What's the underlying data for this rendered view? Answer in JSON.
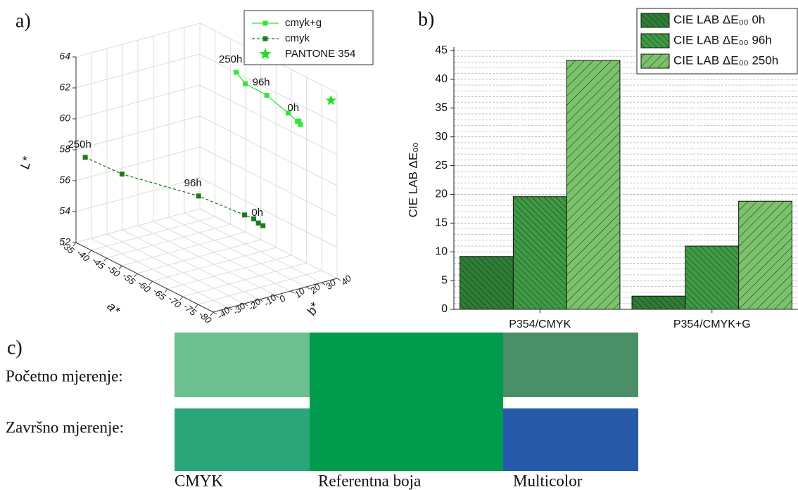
{
  "chart_data": [
    {
      "type": "line3d",
      "panel_label": "a)",
      "xlabel": "a*",
      "ylabel": "b*",
      "zlabel": "L*",
      "xlim": [
        -35,
        -80
      ],
      "xticks": [
        -35,
        -40,
        -45,
        -50,
        -55,
        -60,
        -65,
        -70,
        -75,
        -80
      ],
      "ylim": [
        -40,
        40
      ],
      "yticks": [
        -40,
        -30,
        -20,
        -10,
        0,
        10,
        20,
        30,
        40
      ],
      "zlim": [
        52,
        64
      ],
      "zticks": [
        52,
        54,
        56,
        58,
        60,
        62,
        64
      ],
      "grid": true,
      "series": [
        {
          "name": "cmyk+g",
          "color": "#33e633",
          "dash": false,
          "marker": "square",
          "x": [
            -52,
            -54,
            -60,
            -66,
            -68,
            -69,
            -68
          ],
          "y": [
            30,
            32,
            34,
            36,
            38,
            38,
            39
          ],
          "z": [
            62.8,
            62.2,
            62.0,
            61.4,
            61.0,
            60.9,
            61.0
          ],
          "point_labels": [
            "250h",
            null,
            "96h",
            null,
            null,
            null,
            "0h"
          ]
        },
        {
          "name": "cmyk",
          "color": "#1e7a1e",
          "dash": true,
          "marker": "square",
          "x": [
            -36,
            -44,
            -62,
            -72,
            -74,
            -75,
            -76
          ],
          "y": [
            -36,
            -28,
            -14,
            -4,
            -2,
            -1,
            0
          ],
          "z": [
            57.5,
            57.0,
            57.0,
            56.5,
            56.4,
            56.2,
            56.1
          ],
          "point_labels": [
            "250h",
            null,
            "96h",
            null,
            null,
            null,
            "0h"
          ]
        },
        {
          "name": "PANTONE 354",
          "color": "#22dd22",
          "dash": false,
          "marker": "star",
          "x": [
            -78
          ],
          "y": [
            40
          ],
          "z": [
            63.3
          ],
          "point_labels": [
            null
          ]
        }
      ]
    },
    {
      "type": "bar",
      "panel_label": "b)",
      "ylabel": "CIE LAB ΔE₀₀",
      "categories": [
        "P354/CMYK",
        "P354/CMYK+G"
      ],
      "series": [
        {
          "name": "CIE LAB ΔE₀₀ 0h",
          "color": "#2f7d36",
          "hatch": "backslash",
          "values": [
            9.2,
            2.3
          ]
        },
        {
          "name": "CIE LAB ΔE₀₀ 96h",
          "color": "#3f9a45",
          "hatch": "backslash",
          "values": [
            19.6,
            11.0
          ]
        },
        {
          "name": "CIE LAB ΔE₀₀ 250h",
          "color": "#7cc26a",
          "hatch": "slash",
          "values": [
            43.3,
            18.8
          ]
        }
      ],
      "ylim": [
        0,
        45
      ],
      "yticks": [
        0,
        5,
        10,
        15,
        20,
        25,
        30,
        35,
        40,
        45
      ],
      "grid": true,
      "minor_grid": true,
      "legend": "top-right"
    }
  ],
  "swatches": {
    "panel_label": "c)",
    "rows": [
      "Početno mjerenje:",
      "Završno mjerenje:"
    ],
    "columns": [
      "CMYK",
      "Referentna boja",
      "Multicolor"
    ],
    "colors": [
      [
        "#6cbf8e",
        "#009b4c",
        "#4b8f68"
      ],
      [
        "#2ba67b",
        "#009b4c",
        "#2659a8"
      ]
    ]
  }
}
